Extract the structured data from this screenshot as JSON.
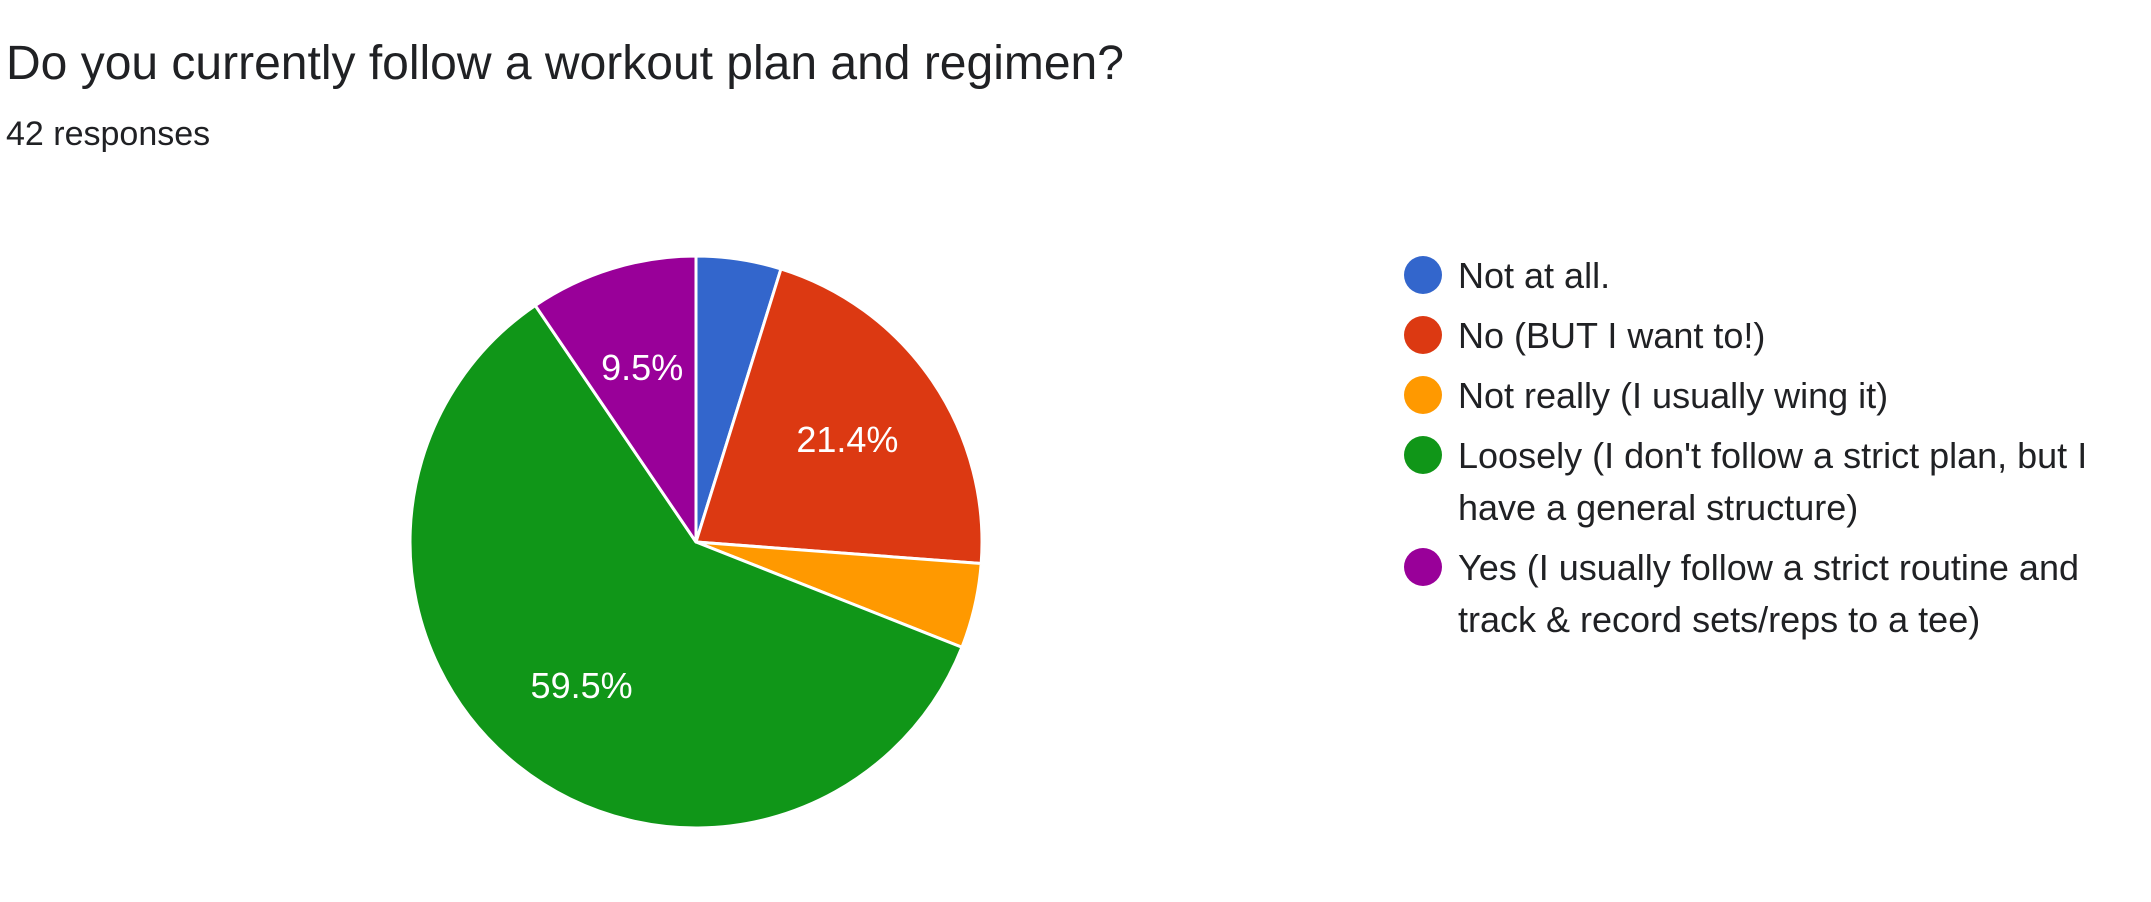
{
  "header": {
    "title": "Do you currently follow a workout plan and regimen?",
    "responses": "42 responses"
  },
  "chart_data": {
    "type": "pie",
    "title": "Do you currently follow a workout plan and regimen?",
    "subtitle": "42 responses",
    "legend_position": "right",
    "start_angle_deg": 90,
    "direction": "clockwise",
    "categories": [
      "Not at all.",
      "No (BUT I want to!)",
      "Not really (I usually wing it)",
      "Loosely (I don't follow a strict plan, but I have a general structure)",
      "Yes (I usually follow a strict routine and track & record sets/reps to a tee)"
    ],
    "legend_lines": [
      [
        "Not at all."
      ],
      [
        "No (BUT I want to!)"
      ],
      [
        "Not really (I usually wing it)"
      ],
      [
        "Loosely (I don't follow a strict plan, but I",
        "have a general structure)"
      ],
      [
        "Yes (I usually follow a strict routine and",
        "track & record sets/reps to a tee)"
      ]
    ],
    "values": [
      4.8,
      21.4,
      4.8,
      59.5,
      9.5
    ],
    "counts": [
      2,
      9,
      2,
      25,
      4
    ],
    "data_labels": [
      "",
      "21.4%",
      "",
      "59.5%",
      "9.5%"
    ],
    "colors": [
      "#3366cc",
      "#dc3912",
      "#ff9900",
      "#109618",
      "#990099"
    ]
  }
}
